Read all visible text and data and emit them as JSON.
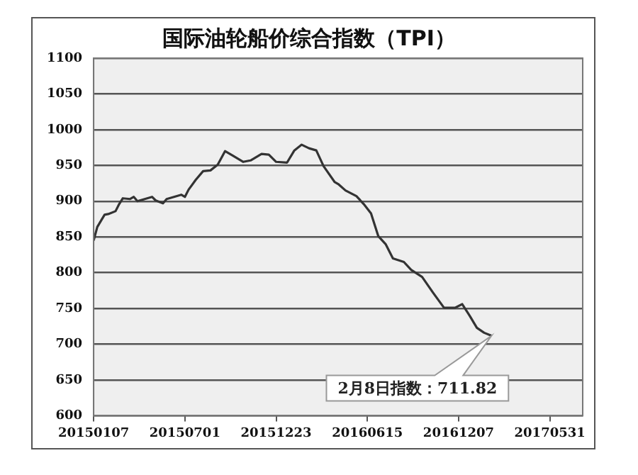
{
  "chart_data": {
    "type": "line",
    "title": "国际油轮船价综合指数（TPI）",
    "x": [
      "2015-01-07",
      "2015-01-14",
      "2015-01-28",
      "2015-02-04",
      "2015-02-18",
      "2015-02-25",
      "2015-03-04",
      "2015-03-18",
      "2015-03-25",
      "2015-04-01",
      "2015-04-15",
      "2015-04-29",
      "2015-05-06",
      "2015-05-20",
      "2015-05-27",
      "2015-06-10",
      "2015-06-24",
      "2015-07-01",
      "2015-07-08",
      "2015-07-22",
      "2015-08-05",
      "2015-08-19",
      "2015-09-02",
      "2015-09-16",
      "2015-09-30",
      "2015-10-21",
      "2015-11-04",
      "2015-11-25",
      "2015-12-09",
      "2015-12-23",
      "2016-01-13",
      "2016-01-27",
      "2016-02-10",
      "2016-02-24",
      "2016-03-09",
      "2016-03-23",
      "2016-04-13",
      "2016-04-20",
      "2016-05-04",
      "2016-05-25",
      "2016-06-08",
      "2016-06-22",
      "2016-07-06",
      "2016-07-20",
      "2016-08-03",
      "2016-08-24",
      "2016-09-07",
      "2016-09-28",
      "2016-10-19",
      "2016-11-09",
      "2016-11-30",
      "2016-12-14",
      "2016-12-28",
      "2017-01-11",
      "2017-01-25",
      "2017-02-08"
    ],
    "series": [
      {
        "color": "#333333",
        "values": [
          845,
          864,
          881,
          882,
          886,
          896,
          904,
          903,
          906,
          900,
          903,
          906,
          901,
          897,
          903,
          906,
          909,
          906,
          916,
          930,
          942,
          943,
          951,
          970,
          964,
          955,
          957,
          966,
          965,
          955,
          954,
          971,
          979,
          974,
          971,
          949,
          927,
          924,
          915,
          907,
          896,
          883,
          851,
          840,
          820,
          815,
          804,
          794,
          772,
          751,
          751,
          756,
          740,
          723,
          716,
          711.82
        ]
      }
    ],
    "xlim": [
      "2015-01-07",
      "2017-08-02"
    ],
    "xticks": [
      {
        "value": "2015-01-07",
        "label": "20150107"
      },
      {
        "value": "2015-07-01",
        "label": "20150701"
      },
      {
        "value": "2015-12-23",
        "label": "20151223"
      },
      {
        "value": "2016-06-15",
        "label": "20160615"
      },
      {
        "value": "2016-12-07",
        "label": "20161207"
      },
      {
        "value": "2017-05-31",
        "label": "20170531"
      }
    ],
    "ylim": [
      600,
      1100
    ],
    "yticks": [
      600,
      650,
      700,
      750,
      800,
      850,
      900,
      950,
      1000,
      1050,
      1100
    ],
    "grid": "y",
    "legend": false,
    "marker": "none",
    "line_style": "solid",
    "annotations": [
      {
        "text": "2月8日指数：711.82",
        "x": "2017-02-08",
        "y": 711.82
      }
    ]
  }
}
